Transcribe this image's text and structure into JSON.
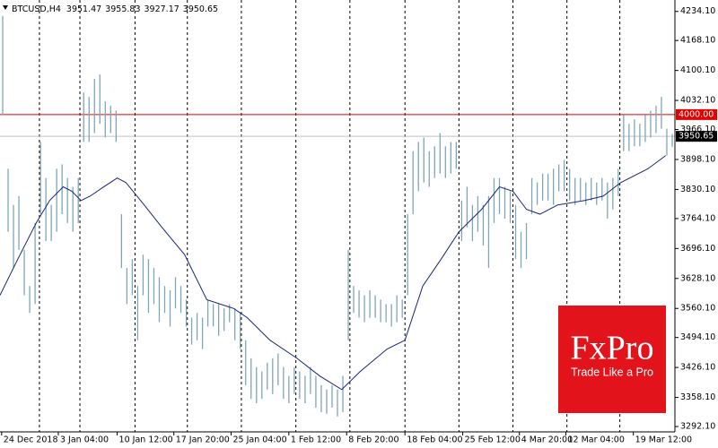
{
  "chart_data": {
    "type": "ohlc",
    "header": {
      "symbol": "BTCUSD,H4",
      "open": 3951.47,
      "high": 3955.83,
      "low": 3927.17,
      "close": 3950.65
    },
    "bars": {
      "color": "#7fa6b6",
      "high": [
        4224,
        3877,
        3795,
        3815,
        3693,
        3611,
        3754,
        3938,
        3856,
        3795,
        3877,
        3887,
        3856,
        3836,
        3856,
        4050,
        4040,
        4081,
        4091,
        4030,
        4020,
        4009,
        3774,
        3652,
        3672,
        3611,
        3682,
        3672,
        3652,
        3631,
        3611,
        3601,
        3631,
        3611,
        3580,
        3539,
        3550,
        3539,
        3580,
        3570,
        3570,
        3560,
        3570,
        3560,
        3550,
        3488,
        3447,
        3427,
        3417,
        3437,
        3447,
        3458,
        3427,
        3407,
        3427,
        3417,
        3407,
        3427,
        3407,
        3386,
        3376,
        3386,
        3376,
        3407,
        3693,
        3611,
        3601,
        3590,
        3601,
        3590,
        3580,
        3570,
        3570,
        3590,
        3580,
        3774,
        3917,
        3938,
        3948,
        3917,
        3928,
        3958,
        3928,
        3938,
        3938,
        3805,
        3836,
        3795,
        3815,
        3795,
        3815,
        3856,
        3856,
        3836,
        3826,
        3795,
        3734,
        3754,
        3856,
        3846,
        3866,
        3866,
        3877,
        3887,
        3897,
        3877,
        3856,
        3856,
        3846,
        3856,
        3846,
        3856,
        3846,
        3856,
        3877,
        3999,
        3979,
        3989,
        3979,
        3999,
        4009,
        4020,
        4040,
        3968,
        3956
      ],
      "low": [
        3999,
        3734,
        3652,
        3693,
        3590,
        3550,
        3570,
        3774,
        3713,
        3713,
        3734,
        3774,
        3754,
        3734,
        3754,
        3938,
        3938,
        3958,
        3979,
        3948,
        3958,
        3938,
        3652,
        3570,
        3590,
        3488,
        3590,
        3550,
        3570,
        3529,
        3550,
        3519,
        3560,
        3550,
        3519,
        3478,
        3488,
        3468,
        3519,
        3519,
        3498,
        3509,
        3529,
        3488,
        3468,
        3386,
        3355,
        3345,
        3355,
        3376,
        3366,
        3386,
        3355,
        3345,
        3366,
        3355,
        3345,
        3366,
        3335,
        3325,
        3321,
        3335,
        3315,
        3325,
        3488,
        3550,
        3539,
        3529,
        3539,
        3539,
        3529,
        3529,
        3519,
        3529,
        3539,
        3590,
        3774,
        3826,
        3846,
        3836,
        3856,
        3866,
        3856,
        3866,
        3877,
        3713,
        3744,
        3713,
        3734,
        3703,
        3652,
        3754,
        3774,
        3764,
        3754,
        3672,
        3652,
        3672,
        3774,
        3795,
        3805,
        3805,
        3795,
        3826,
        3826,
        3805,
        3795,
        3805,
        3795,
        3805,
        3795,
        3805,
        3764,
        3785,
        3815,
        3917,
        3917,
        3928,
        3928,
        3938,
        3948,
        3958,
        3968,
        3907,
        3927
      ]
    },
    "ma": {
      "color": "#1a237e",
      "x": [
        0,
        3.3,
        6.7,
        9.2,
        11.7,
        13.3,
        15,
        16.7,
        19.2,
        21.7,
        23.3,
        26.7,
        30,
        34.2,
        38.3,
        40.8,
        43.3,
        45.8,
        50,
        55,
        59.2,
        63.3,
        66.7,
        71.7,
        75,
        78.3,
        81.7,
        85,
        89.2,
        92.5,
        95,
        97.5,
        100,
        103.3,
        108.3,
        111.7,
        115,
        120,
        123.3
      ],
      "values": [
        3590,
        3672,
        3754,
        3805,
        3836,
        3826,
        3805,
        3815,
        3836,
        3856,
        3846,
        3795,
        3744,
        3682,
        3580,
        3570,
        3560,
        3539,
        3488,
        3447,
        3407,
        3376,
        3417,
        3468,
        3488,
        3611,
        3672,
        3734,
        3785,
        3836,
        3826,
        3785,
        3774,
        3795,
        3805,
        3815,
        3846,
        3877,
        3907
      ]
    },
    "xlim": [
      0,
      125
    ],
    "ylim": [
      3280,
      4260
    ],
    "yticks": [
      {
        "value": 4234.1,
        "label": "4234.10"
      },
      {
        "value": 4168.1,
        "label": "4168.10"
      },
      {
        "value": 4100.1,
        "label": "4100.10"
      },
      {
        "value": 4032.1,
        "label": "4032.10"
      },
      {
        "value": 3966.1,
        "label": "3966.10"
      },
      {
        "value": 3898.1,
        "label": "3898.10"
      },
      {
        "value": 3830.1,
        "label": "3830.10"
      },
      {
        "value": 3764.1,
        "label": "3764.10"
      },
      {
        "value": 3696.1,
        "label": "3696.10"
      },
      {
        "value": 3628.1,
        "label": "3628.10"
      },
      {
        "value": 3560.1,
        "label": "3560.10"
      },
      {
        "value": 3494.1,
        "label": "3494.10"
      },
      {
        "value": 3426.1,
        "label": "3426.10"
      },
      {
        "value": 3358.1,
        "label": "3358.10"
      },
      {
        "value": 3292.1,
        "label": "3292.10"
      }
    ],
    "xticks": [
      {
        "value": 0.3,
        "label": "24 Dec 2018"
      },
      {
        "value": 10.8,
        "label": "3 Jan 04:00"
      },
      {
        "value": 21.7,
        "label": "10 Jan 12:00"
      },
      {
        "value": 32.2,
        "label": "17 Jan 20:00"
      },
      {
        "value": 42.8,
        "label": "25 Jan 04:00"
      },
      {
        "value": 53.5,
        "label": "1 Feb 12:00"
      },
      {
        "value": 64.2,
        "label": "8 Feb 20:00"
      },
      {
        "value": 75,
        "label": "18 Feb 04:00"
      },
      {
        "value": 85.7,
        "label": "25 Feb 12:00"
      },
      {
        "value": 96.2,
        "label": "4 Mar 20:00"
      },
      {
        "value": 104.8,
        "label": "12 Mar 04:00"
      },
      {
        "value": 117.3,
        "label": "19 Mar 12:00"
      }
    ],
    "separators": [
      7.3,
      14.8,
      25,
      34.7,
      44.7,
      54.8,
      64.8,
      75,
      85,
      95,
      105,
      114.8
    ],
    "levels": [
      {
        "value": 4000,
        "label": "4000.00",
        "color": "#e00000",
        "label_fill": "#e00000"
      },
      {
        "value": 3950.65,
        "label": "3950.65",
        "color": "#c0c0c0",
        "label_fill": "#000000"
      }
    ]
  },
  "logo": {
    "brand": "FxPro",
    "tagline": "Trade Like a Pro"
  }
}
